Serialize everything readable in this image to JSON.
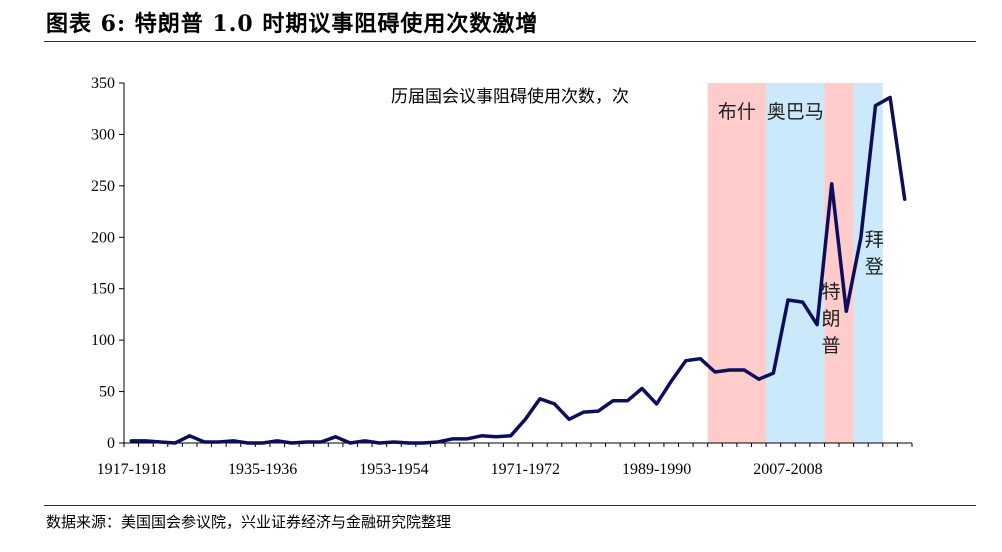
{
  "figure": {
    "title": "图表 6:  特朗普 1.0 时期议事阻碍使用次数激增",
    "source": "数据来源：美国国会参议院，兴业证券经济与金融研究院整理"
  },
  "chart_data": {
    "type": "line",
    "title": "历届国会议事阻碍使用次数，次",
    "xlabel": "",
    "ylabel": "",
    "ylim": [
      0,
      350
    ],
    "yticks": [
      0,
      50,
      100,
      150,
      200,
      250,
      300,
      350
    ],
    "xtick_labels": [
      "1917-1918",
      "1935-1936",
      "1953-1954",
      "1971-1972",
      "1989-1990",
      "2007-2008"
    ],
    "xtick_indices": [
      0,
      9,
      18,
      27,
      36,
      45
    ],
    "grid": false,
    "series": [
      {
        "color": "#0d0d5c",
        "values": [
          2,
          2,
          1,
          0,
          7,
          1,
          1,
          2,
          0,
          0,
          2,
          0,
          1,
          1,
          6,
          0,
          2,
          0,
          1,
          0,
          0,
          1,
          4,
          4,
          7,
          6,
          7,
          23,
          43,
          38,
          23,
          30,
          31,
          41,
          41,
          53,
          38,
          60,
          80,
          82,
          69,
          71,
          71,
          62,
          68,
          139,
          137,
          115,
          252,
          128,
          200,
          328,
          336,
          237
        ]
      }
    ],
    "shaded_periods": [
      {
        "label": "布什",
        "start_index": 40,
        "end_index": 44,
        "color": "#ffcccc",
        "label_layout": "horizontal"
      },
      {
        "label": "奥巴马",
        "start_index": 44,
        "end_index": 48,
        "color": "#cce9fb",
        "label_layout": "horizontal"
      },
      {
        "label": "特朗普",
        "start_index": 48,
        "end_index": 50,
        "color": "#ffcccc",
        "label_layout": "vertical"
      },
      {
        "label": "拜登",
        "start_index": 50,
        "end_index": 52,
        "color": "#cce9fb",
        "label_layout": "vertical"
      }
    ]
  }
}
